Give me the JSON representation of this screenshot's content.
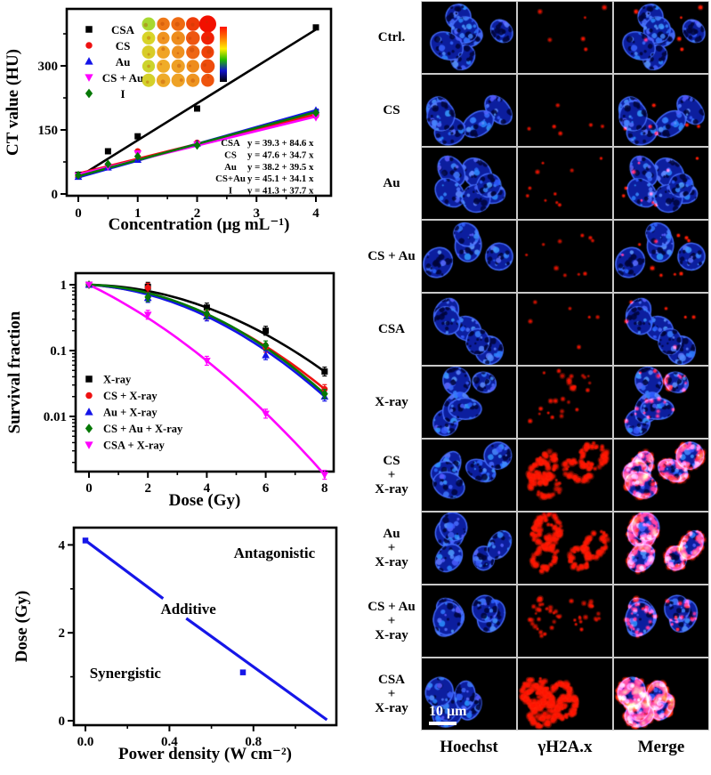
{
  "chart_data": [
    {
      "id": "ct_value",
      "type": "scatter",
      "title": "",
      "xlabel": "Concentration (μg mL⁻¹)",
      "ylabel": "CT value (HU)",
      "xticks": [
        "0",
        "1",
        "2",
        "3",
        "4"
      ],
      "xticks_minor": [
        0.5,
        1.5,
        2.5,
        3.5
      ],
      "yticks": [
        "0",
        "150",
        "300"
      ],
      "yticks_minor": [
        75,
        225,
        375
      ],
      "xlim": [
        0,
        4.3
      ],
      "ylim": [
        0,
        435
      ],
      "grid": false,
      "legend_position": "top-left-inside",
      "series": [
        {
          "name": "CSA",
          "marker": "square",
          "color": "#000000",
          "eq_name": "CSA",
          "fit_label": "y = 39.3 + 84.6 x",
          "x": [
            0,
            0.5,
            1,
            2,
            4
          ],
          "y": [
            45,
            100,
            135,
            200,
            390
          ],
          "line": {
            "x0": 0.1,
            "y0": 48,
            "x1": 4.0,
            "y1": 385
          }
        },
        {
          "name": "CS",
          "marker": "circle",
          "color": "#ee1111",
          "eq_name": "CS",
          "fit_label": "y = 47.6 + 34.7 x",
          "x": [
            0,
            0.5,
            1,
            2,
            4
          ],
          "y": [
            42,
            68,
            100,
            120,
            183
          ],
          "line": {
            "x0": -0.02,
            "y0": 47,
            "x1": 4.05,
            "y1": 188
          }
        },
        {
          "name": "Au",
          "marker": "tri-up",
          "color": "#1414e8",
          "eq_name": "Au",
          "fit_label": "y = 38.2 + 39.5 x",
          "x": [
            0,
            0.5,
            1,
            2,
            4
          ],
          "y": [
            40,
            62,
            80,
            118,
            196
          ],
          "line": {
            "x0": -0.02,
            "y0": 38,
            "x1": 4.05,
            "y1": 198
          }
        },
        {
          "name": "CS + Au",
          "marker": "tri-down",
          "color": "#ff00ff",
          "eq_name": "CS+Au",
          "fit_label": "y = 45.1 + 34.1 x",
          "x": [
            0,
            0.5,
            1,
            2,
            4
          ],
          "y": [
            43,
            64,
            95,
            116,
            179
          ],
          "line": {
            "x0": -0.02,
            "y0": 45,
            "x1": 4.05,
            "y1": 183
          }
        },
        {
          "name": "I",
          "marker": "diamond",
          "color": "#067806",
          "eq_name": "I",
          "fit_label": "y = 41.3 + 37.7 x",
          "x": [
            0,
            0.5,
            1,
            2,
            4
          ],
          "y": [
            44,
            70,
            88,
            114,
            190
          ],
          "line": {
            "x0": -0.02,
            "y0": 41,
            "x1": 4.05,
            "y1": 194
          }
        }
      ],
      "inset": {
        "circle_colors": [
          [
            "#a8d830",
            "#ee7716",
            "#ee6a12",
            "#ee3b08",
            "#f21000"
          ],
          [
            "#d8d428",
            "#f09420",
            "#ee8c1c",
            "#ee5510",
            "#f02004"
          ],
          [
            "#d8cc28",
            "#f0a424",
            "#ee9020",
            "#ee6614",
            "#ee4208"
          ],
          [
            "#ccd42c",
            "#f0ac28",
            "#eea024",
            "#ee8c1c",
            "#ee4c0c"
          ],
          [
            "#d4d02a",
            "#eeaa28",
            "#eea226",
            "#ee9420",
            "#ee540e"
          ]
        ],
        "colorbar": [
          "#ff1000",
          "#ff7700",
          "#ffee00",
          "#22bb00",
          "#1111cc",
          "#000000"
        ]
      }
    },
    {
      "id": "survival_fraction",
      "type": "line",
      "title": "",
      "xlabel": "Dose (Gy)",
      "ylabel": "Survival fraction",
      "xticks": [
        "0",
        "2",
        "4",
        "6",
        "8"
      ],
      "xticks_minor": [
        1,
        3,
        5,
        7
      ],
      "yticks": [
        "1",
        "0.1",
        "0.01"
      ],
      "yscale": "log",
      "xlim": [
        0,
        8.3
      ],
      "ylim": [
        0.0015,
        1.3
      ],
      "grid": false,
      "legend_position": "bottom-left-inside",
      "x": [
        0,
        2,
        4,
        6,
        8
      ],
      "series": [
        {
          "name": "X-ray",
          "marker": "square",
          "color": "#000000",
          "values": [
            1,
            0.93,
            0.45,
            0.2,
            0.048
          ]
        },
        {
          "name": "CS + X-ray",
          "marker": "circle",
          "color": "#ee1111",
          "values": [
            1,
            0.9,
            0.35,
            0.11,
            0.026
          ]
        },
        {
          "name": "Au + X-ray",
          "marker": "tri-up",
          "color": "#1414e8",
          "values": [
            1,
            0.63,
            0.33,
            0.085,
            0.02
          ]
        },
        {
          "name": "CS + Au + X-ray",
          "marker": "diamond",
          "color": "#067806",
          "values": [
            1,
            0.65,
            0.36,
            0.12,
            0.022
          ]
        },
        {
          "name": "CSA + X-ray",
          "marker": "tri-down",
          "color": "#ff00ff",
          "values": [
            1,
            0.35,
            0.07,
            0.011,
            0.0013
          ]
        }
      ]
    },
    {
      "id": "isobologram",
      "type": "line",
      "title": "",
      "xlabel": "Power density (W cm⁻²)",
      "ylabel": "Dose (Gy)",
      "xticks": [
        "0.0",
        "0.4",
        "0.8"
      ],
      "xticks_minor": [
        0.2,
        0.6,
        1.0
      ],
      "yticks": [
        "0",
        "2",
        "4"
      ],
      "yticks_minor": [
        1,
        3
      ],
      "xlim": [
        0,
        1.19
      ],
      "ylim": [
        0,
        4.45
      ],
      "grid": false,
      "line_color": "#1616e8",
      "segments": [
        [
          [
            0,
            4.1
          ],
          [
            0.37,
            2.78
          ]
        ],
        [
          [
            0.48,
            2.33
          ],
          [
            1.15,
            0.02
          ]
        ]
      ],
      "points": [
        [
          0,
          4.1
        ],
        [
          0.75,
          1.1
        ]
      ],
      "region_labels": [
        {
          "text": "Antagonistic",
          "x": 0.9,
          "y": 3.7
        },
        {
          "text": "Additive",
          "x": 0.49,
          "y": 2.43
        },
        {
          "text": "Synergistic",
          "x": 0.19,
          "y": 0.97
        }
      ]
    }
  ],
  "microscopy": {
    "columns": [
      "Hoechst",
      "γH2A.x",
      "Merge"
    ],
    "scale_bar": "10 μm",
    "colors": {
      "nucleus_blue": "#0c1e9e",
      "gamma_red": "#ff1400"
    },
    "rows": [
      {
        "label_lines": [
          "Ctrl."
        ],
        "gamma_intensity": 1
      },
      {
        "label_lines": [
          "CS"
        ],
        "gamma_intensity": 1
      },
      {
        "label_lines": [
          "Au"
        ],
        "gamma_intensity": 2
      },
      {
        "label_lines": [
          "CS + Au"
        ],
        "gamma_intensity": 2
      },
      {
        "label_lines": [
          "CSA"
        ],
        "gamma_intensity": 1
      },
      {
        "label_lines": [
          "X-ray"
        ],
        "gamma_intensity": 3
      },
      {
        "label_lines": [
          "CS",
          "+",
          "X-ray"
        ],
        "gamma_intensity": 8
      },
      {
        "label_lines": [
          "Au",
          "+",
          "X-ray"
        ],
        "gamma_intensity": 8
      },
      {
        "label_lines": [
          "CS + Au",
          "+",
          "X-ray"
        ],
        "gamma_intensity": 5
      },
      {
        "label_lines": [
          "CSA",
          "+",
          "X-ray"
        ],
        "gamma_intensity": 10
      }
    ]
  }
}
